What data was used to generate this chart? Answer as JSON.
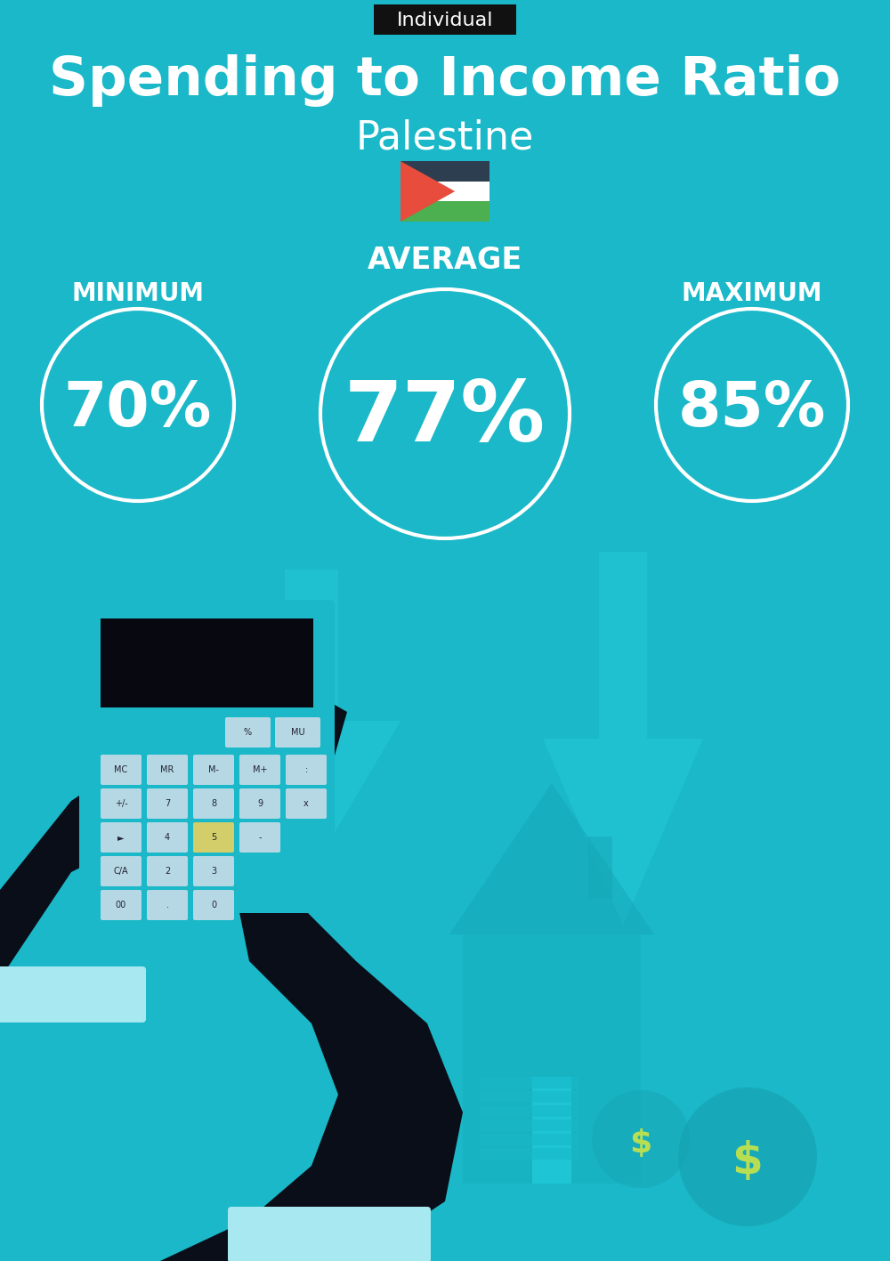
{
  "bg_color": "#1ab8c8",
  "title": "Spending to Income Ratio",
  "subtitle": "Palestine",
  "tag_text": "Individual",
  "tag_bg": "#111111",
  "tag_fg": "#ffffff",
  "min_label": "MINIMUM",
  "avg_label": "AVERAGE",
  "max_label": "MAXIMUM",
  "min_value": "70%",
  "avg_value": "77%",
  "max_value": "85%",
  "circle_color": "#ffffff",
  "text_color": "#ffffff",
  "title_fontsize": 44,
  "subtitle_fontsize": 32,
  "label_fontsize": 20,
  "value_fontsize_small": 50,
  "value_fontsize_large": 68,
  "tag_fontsize": 16
}
